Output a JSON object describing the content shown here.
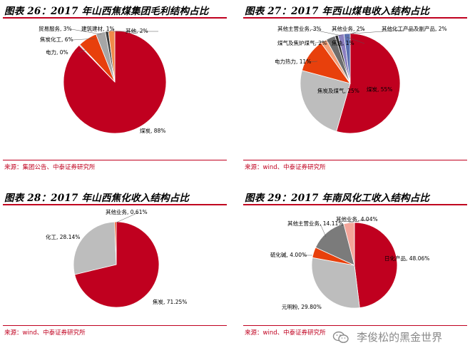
{
  "chart_data": [
    {
      "type": "pie",
      "title": "图表 26：2017 年山西焦煤集团毛利结构占比",
      "source": "来源：集团公告、中泰证券研究所",
      "slices": [
        {
          "label": "煤炭, 88%",
          "value": 88,
          "color": "#c0001f"
        },
        {
          "label": "电力, 0%",
          "value": 0.3,
          "color": "#9a9a9a"
        },
        {
          "label": "焦炭化工, 6%",
          "value": 6,
          "color": "#e8400c"
        },
        {
          "label": "贸易服务, 3%",
          "value": 3,
          "color": "#a6a6a6"
        },
        {
          "label": "建筑建材, 1%",
          "value": 1,
          "color": "#3c3c3c"
        },
        {
          "label": "其他, 2%",
          "value": 2,
          "color": "#f08a4a"
        }
      ]
    },
    {
      "type": "pie",
      "title": "图表 27：2017 年西山煤电收入结构占比",
      "source": "来源：wind、中泰证券研究所",
      "slices": [
        {
          "label": "煤炭, 55%",
          "value": 55,
          "color": "#c0001f"
        },
        {
          "label": "焦炭及煤气, 25%",
          "value": 25,
          "color": "#bdbdbd"
        },
        {
          "label": "电力热力, 11%",
          "value": 11,
          "color": "#e8400c"
        },
        {
          "label": "煤气及焦炉煤气, 2%",
          "value": 2,
          "color": "#f1a07a"
        },
        {
          "label": "其他主营业务, 3%",
          "value": 3,
          "color": "#6d6d6d"
        },
        {
          "label": "焦油, 1%",
          "value": 1,
          "color": "#2b2b2b"
        },
        {
          "label": "其他业务, 2%",
          "value": 2,
          "color": "#8b7fc0"
        },
        {
          "label": "其他化工产品及副产品, 2%",
          "value": 2,
          "color": "#5a6fb0"
        }
      ]
    },
    {
      "type": "pie",
      "title": "图表 28：2017 年山西焦化收入结构占比",
      "source": "来源：wind、中泰证券研究所",
      "slices": [
        {
          "label": "焦炭, 71.25%",
          "value": 71.25,
          "color": "#c0001f"
        },
        {
          "label": "化工, 28.14%",
          "value": 28.14,
          "color": "#bdbdbd"
        },
        {
          "label": "其他业务, 0.61%",
          "value": 0.61,
          "color": "#e8400c"
        }
      ]
    },
    {
      "type": "pie",
      "title": "图表 29：2017 年南风化工收入结构占比",
      "source": "来源：wind、中泰证券研究所",
      "slices": [
        {
          "label": "日化产品, 48.06%",
          "value": 48.06,
          "color": "#c0001f"
        },
        {
          "label": "元明粉, 29.80%",
          "value": 29.8,
          "color": "#bdbdbd"
        },
        {
          "label": "硫化碱, 4.00%",
          "value": 4.0,
          "color": "#e8400c"
        },
        {
          "label": "其他主营业务, 14.11%",
          "value": 14.11,
          "color": "#7b7b7b"
        },
        {
          "label": "其他业务, 4.04%",
          "value": 4.04,
          "color": "#f4a59a"
        }
      ]
    }
  ],
  "watermark": {
    "text": "李俊松的黑金世界",
    "icon": "wechat-icon"
  }
}
